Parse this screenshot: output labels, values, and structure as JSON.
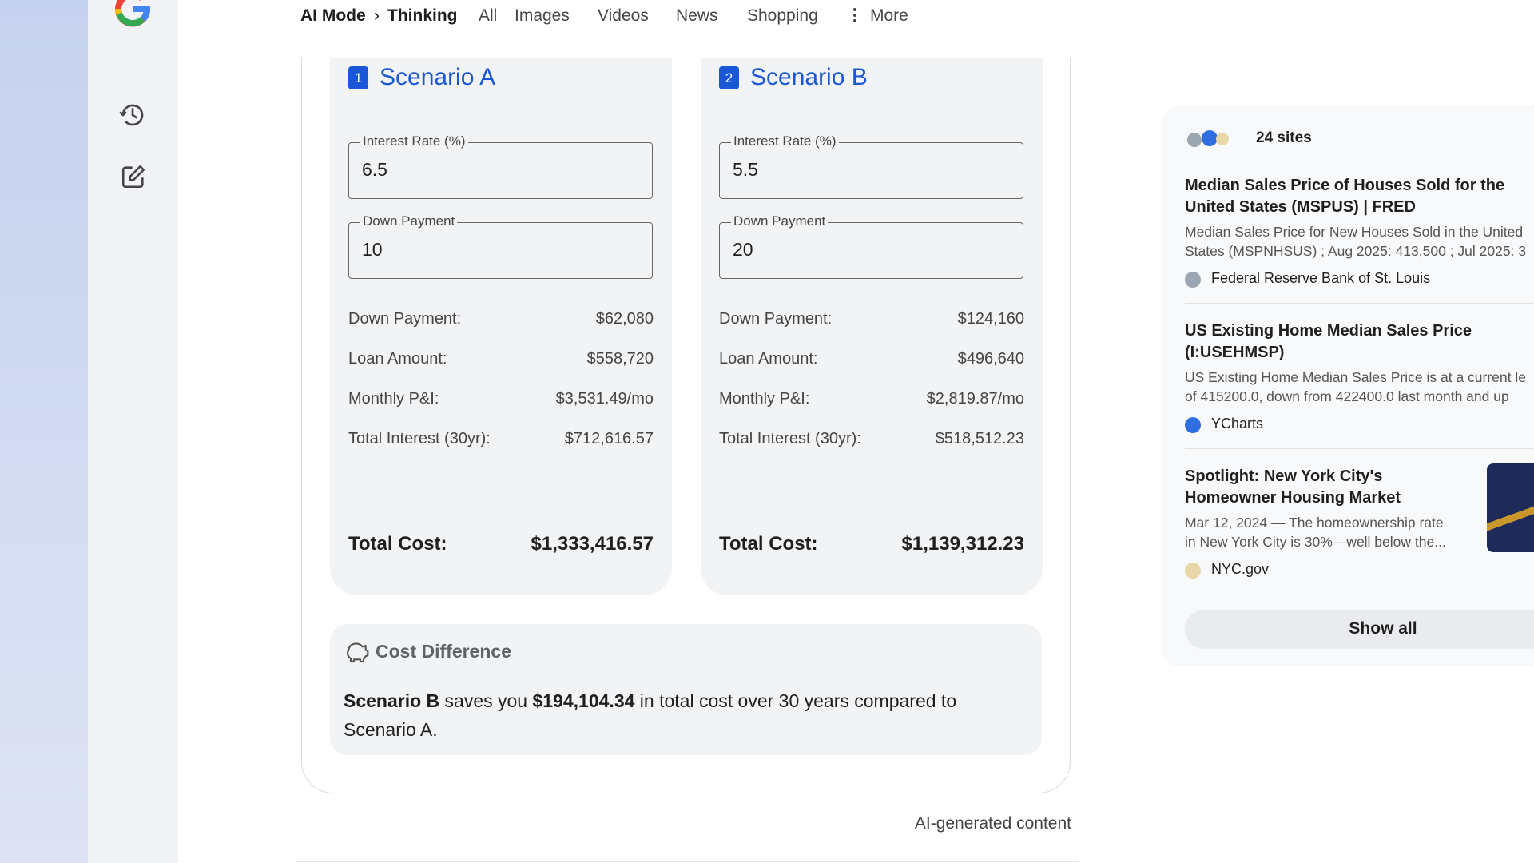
{
  "nav": {
    "breadcrumb": [
      "AI Mode",
      "Thinking"
    ],
    "separator": "›",
    "tabs": [
      "All",
      "Images",
      "Videos",
      "News",
      "Shopping"
    ],
    "more": "More"
  },
  "scenarios": [
    {
      "badge": "1",
      "title": "Scenario A",
      "inputs": [
        {
          "label": "Interest Rate (%)",
          "value": "6.5"
        },
        {
          "label": "Down Payment",
          "value": "10"
        }
      ],
      "rows": [
        {
          "label": "Down Payment:",
          "value": "$62,080"
        },
        {
          "label": "Loan Amount:",
          "value": "$558,720"
        },
        {
          "label": "Monthly P&I:",
          "value": "$3,531.49/mo"
        },
        {
          "label": "Total Interest (30yr):",
          "value": "$712,616.57"
        }
      ],
      "total": {
        "label": "Total Cost:",
        "value": "$1,333,416.57"
      }
    },
    {
      "badge": "2",
      "title": "Scenario B",
      "inputs": [
        {
          "label": "Interest Rate (%)",
          "value": "5.5"
        },
        {
          "label": "Down Payment",
          "value": "20"
        }
      ],
      "rows": [
        {
          "label": "Down Payment:",
          "value": "$124,160"
        },
        {
          "label": "Loan Amount:",
          "value": "$496,640"
        },
        {
          "label": "Monthly P&I:",
          "value": "$2,819.87/mo"
        },
        {
          "label": "Total Interest (30yr):",
          "value": "$518,512.23"
        }
      ],
      "total": {
        "label": "Total Cost:",
        "value": "$1,139,312.23"
      }
    }
  ],
  "difference": {
    "title": "Cost Difference",
    "parts": [
      "Scenario B",
      " saves you ",
      "$194,104.34",
      " in total cost over 30 years compared to Scenario A."
    ]
  },
  "footer": "AI-generated content",
  "sources": {
    "count": "24 sites",
    "items": [
      {
        "title": [
          "Median Sales Price of Houses Sold for the",
          "United States (MSPUS) | FRED"
        ],
        "snippet": [
          "Median Sales Price for New Houses Sold in the United",
          "States (MSPNHSUS) ; Aug 2025: 413,500 ; Jul 2025: 3"
        ],
        "source": "Federal Reserve Bank of St. Louis"
      },
      {
        "title": [
          "US Existing Home Median Sales Price",
          "(I:USEHMSP)"
        ],
        "snippet": [
          "US Existing Home Median Sales Price is at a current le",
          "of 415200.0, down from 422400.0 last month and up"
        ],
        "source": "YCharts"
      },
      {
        "title": [
          "Spotlight: New York City's",
          "Homeowner Housing Market"
        ],
        "snippet": [
          "Mar 12, 2024 — The homeownership rate",
          "in New York City is 30%—well below the..."
        ],
        "source": "NYC.gov"
      }
    ],
    "show_all": "Show all"
  }
}
